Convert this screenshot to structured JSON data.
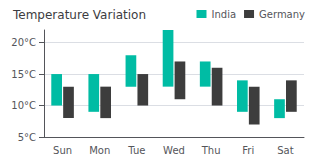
{
  "chart_data": {
    "type": "range_bar",
    "title": "Temperature Variation",
    "categories": [
      "Sun",
      "Mon",
      "Tue",
      "Wed",
      "Thu",
      "Fri",
      "Sat"
    ],
    "series": [
      {
        "name": "India",
        "color": "#00BCA4",
        "low": [
          10,
          9,
          13,
          13,
          13,
          9,
          8
        ],
        "high": [
          15,
          15,
          18,
          22,
          17,
          14,
          11
        ]
      },
      {
        "name": "Germany",
        "color": "#3D3D3D",
        "low": [
          8,
          8,
          10,
          11,
          10,
          7,
          9
        ],
        "high": [
          13,
          13,
          15,
          17,
          16,
          13,
          14
        ]
      }
    ],
    "ylim": [
      5,
      22
    ],
    "yticks": [
      {
        "value": 5,
        "label": "5°C"
      },
      {
        "value": 10,
        "label": "10°C"
      },
      {
        "value": 15,
        "label": "15°C"
      },
      {
        "value": 20,
        "label": "20°C"
      }
    ],
    "grid": true,
    "legend": "upper right"
  }
}
